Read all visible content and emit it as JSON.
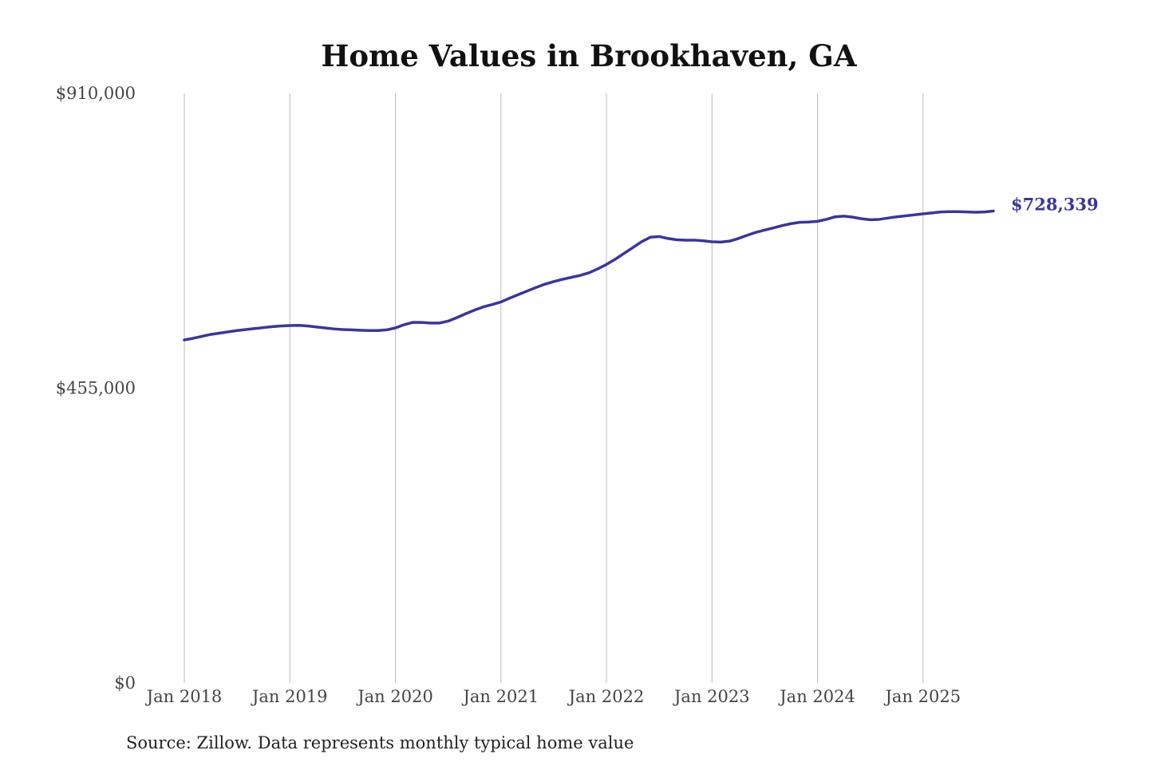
{
  "chart_data": {
    "type": "line",
    "title": "Home Values in Brookhaven, GA",
    "source": "Source: Zillow. Data represents monthly typical home value",
    "color": "#3a35a0",
    "grid": true,
    "x": [
      "2018-01",
      "2018-02",
      "2018-03",
      "2018-04",
      "2018-05",
      "2018-06",
      "2018-07",
      "2018-08",
      "2018-09",
      "2018-10",
      "2018-11",
      "2018-12",
      "2019-01",
      "2019-02",
      "2019-03",
      "2019-04",
      "2019-05",
      "2019-06",
      "2019-07",
      "2019-08",
      "2019-09",
      "2019-10",
      "2019-11",
      "2019-12",
      "2020-01",
      "2020-02",
      "2020-03",
      "2020-04",
      "2020-05",
      "2020-06",
      "2020-07",
      "2020-08",
      "2020-09",
      "2020-10",
      "2020-11",
      "2020-12",
      "2021-01",
      "2021-02",
      "2021-03",
      "2021-04",
      "2021-05",
      "2021-06",
      "2021-07",
      "2021-08",
      "2021-09",
      "2021-10",
      "2021-11",
      "2021-12",
      "2022-01",
      "2022-02",
      "2022-03",
      "2022-04",
      "2022-05",
      "2022-06",
      "2022-07",
      "2022-08",
      "2022-09",
      "2022-10",
      "2022-11",
      "2022-12",
      "2023-01",
      "2023-02",
      "2023-03",
      "2023-04",
      "2023-05",
      "2023-06",
      "2023-07",
      "2023-08",
      "2023-09",
      "2023-10",
      "2023-11",
      "2023-12",
      "2024-01",
      "2024-02",
      "2024-03",
      "2024-04",
      "2024-05",
      "2024-06",
      "2024-07",
      "2024-08",
      "2024-09",
      "2024-10",
      "2024-11",
      "2024-12",
      "2025-01",
      "2025-02",
      "2025-03",
      "2025-04",
      "2025-05",
      "2025-06",
      "2025-07",
      "2025-08",
      "2025-09"
    ],
    "values": [
      529500,
      532000,
      535000,
      538000,
      540000,
      542000,
      544000,
      545500,
      547000,
      548500,
      550000,
      551000,
      551700,
      552000,
      551000,
      549500,
      548000,
      546500,
      545500,
      545000,
      544500,
      544000,
      544000,
      545000,
      548000,
      553000,
      556600,
      556500,
      555500,
      555500,
      558500,
      564000,
      570000,
      575500,
      580500,
      584000,
      588000,
      594000,
      599500,
      605000,
      610500,
      615500,
      619500,
      623000,
      626000,
      629000,
      633000,
      639000,
      646000,
      654000,
      663000,
      672000,
      681000,
      688000,
      689000,
      686000,
      684000,
      683500,
      683500,
      682500,
      681000,
      680500,
      682000,
      686000,
      691000,
      695500,
      699000,
      702500,
      706000,
      709000,
      711000,
      711500,
      712500,
      715500,
      719500,
      720500,
      719000,
      716500,
      715000,
      715500,
      717500,
      719500,
      721000,
      722500,
      724000,
      725500,
      727000,
      727500,
      727500,
      727000,
      726500,
      727000,
      728339
    ],
    "annotation": "$728,339",
    "xlim": [
      "2018-01",
      "2025-09"
    ],
    "xticks": [
      {
        "value": "2018-01",
        "label": "Jan 2018"
      },
      {
        "value": "2019-01",
        "label": "Jan 2019"
      },
      {
        "value": "2020-01",
        "label": "Jan 2020"
      },
      {
        "value": "2021-01",
        "label": "Jan 2021"
      },
      {
        "value": "2022-01",
        "label": "Jan 2022"
      },
      {
        "value": "2023-01",
        "label": "Jan 2023"
      },
      {
        "value": "2024-01",
        "label": "Jan 2024"
      },
      {
        "value": "2025-01",
        "label": "Jan 2025"
      }
    ],
    "ylim": [
      0,
      910000
    ],
    "yticks": [
      {
        "value": 0,
        "label": "$0"
      },
      {
        "value": 455000,
        "label": "$455,000"
      },
      {
        "value": 910000,
        "label": "$910,000"
      }
    ]
  }
}
